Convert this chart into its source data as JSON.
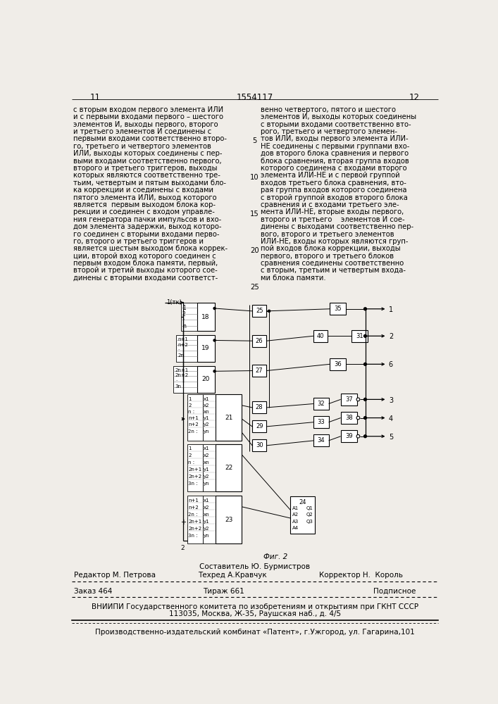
{
  "page_width": 7.07,
  "page_height": 10.0,
  "bg_color": "#f0ede8",
  "header_num_left": "11",
  "header_title": "1554117",
  "header_num_right": "12",
  "left_col_text": [
    "с вторым входом первого элемента ИЛИ",
    "и с первыми входами первого – шестого",
    "элементов И, выходы первого, второго",
    "и третьего элементов И соединены с",
    "первыми входами соответственно второ-",
    "го, третьего и четвертого элементов",
    "ИЛИ, выходы которых соединены с пер-",
    "выми входами соответственно первого,",
    "второго и третьего триггеров, выходы",
    "которых являются соответственно тре-",
    "тьим, четвертым и пятым выходами бло-",
    "ка коррекции и соединены с входами",
    "пятого элемента ИЛИ, выход которого",
    "является  первым выходом блока кор-",
    "рекции и соединен с входом управле-",
    "ния генератора пачки импульсов и вхо-",
    "дом элемента задержки, выход которо-",
    "го соединен с вторыми входами перво-",
    "го, второго и третьего триггеров и",
    "является шестым выходом блока коррек-",
    "ции, второй вход которого соединен с",
    "первым входом блока памяти, первый,",
    "второй и третий выходы которого сое-",
    "динены с вторыми входами соответст-"
  ],
  "right_col_text": [
    "венно четвертого, пятого и шестого",
    "элементов И, выходы которых соединены",
    "с вторыми входами соответственно вто-",
    "рого, третьего и четвертого элемен-",
    "тов ИЛИ, входы первого элемента ИЛИ-",
    "НЕ соединены с первыми группами вхо-",
    "дов второго блока сравнения и первого",
    "блока сравнения, вторая группа входов",
    "которого соединена с входами второго",
    "элемента ИЛИ-НЕ и с первой группой",
    "входов третьего блока сравнения, вто-",
    "рая группа входов которого соединена",
    "с второй группой входов второго блока",
    "сравнения и с входами третьего эле-",
    "мента ИЛИ-НЕ, вторые входы первого,",
    "второго и третьего    элементов И сое-",
    "динены с выходами соответственно пер-",
    "вого, второго и третьего элементов",
    "ИЛИ-НЕ, входы которых являются груп-",
    "пой входов блока коррекции, выходы",
    "первого, второго и третьего блоков",
    "сравнения соединены соответственно",
    "с вторым, третьим и четвертым входа-",
    "ми блока памяти."
  ],
  "fig_label": "Фиг. 2",
  "footer_composer": "Составитель Ю. Бурмистров",
  "footer_editor": "Редактор М. Петрова",
  "footer_tech": "Техред А.Кравчук",
  "footer_corrector": "Корректор Н.  Король",
  "footer_order": "Заказ 464",
  "footer_print": "Тираж 661",
  "footer_sign": "Подписное",
  "footer_org": "ВНИИПИ Государственного комитета по изобретениям и открытиям при ГКНТ СССР",
  "footer_addr": "113035, Москва, Ж-35, Раушская наб., д. 4/5",
  "footer_prod": "Производственно-издательский комбинат «Патент», г.Ужгород, ул. Гагарина,101"
}
